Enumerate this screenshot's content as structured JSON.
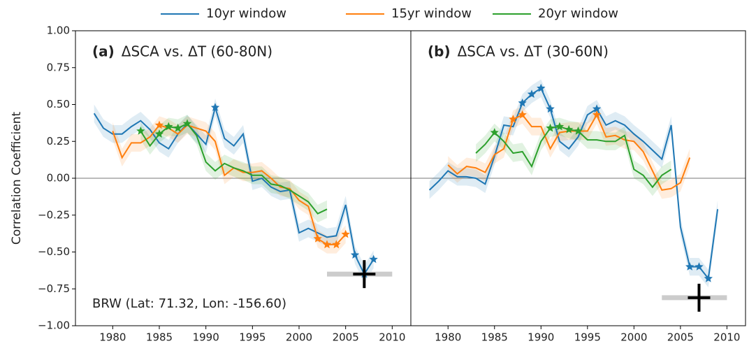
{
  "chart_data": [
    {
      "type": "line",
      "panel_label": "(a)",
      "title": "ΔSCA vs. ΔT (60-80N)",
      "ylabel": "Correlation Coefficient",
      "annotation": "BRW (Lat: 71.32, Lon: -156.60)",
      "xlim": [
        1976,
        2012
      ],
      "xticks": [
        1980,
        1985,
        1990,
        1995,
        2000,
        2005,
        2010
      ],
      "ylim": [
        -1,
        1
      ],
      "yticks": [
        {
          "value": -1,
          "label": "−1.00"
        },
        {
          "value": -0.75,
          "label": "−0.75"
        },
        {
          "value": -0.5,
          "label": "−0.50"
        },
        {
          "value": -0.25,
          "label": "−0.25"
        },
        {
          "value": 0,
          "label": "0.00"
        },
        {
          "value": 0.25,
          "label": "0.25"
        },
        {
          "value": 0.5,
          "label": "0.50"
        },
        {
          "value": 0.75,
          "label": "0.75"
        },
        {
          "value": 1,
          "label": "1.00"
        }
      ],
      "hline": 0,
      "band": 0.06,
      "observed": {
        "x": 2007,
        "y": -0.65,
        "range": [
          2003,
          2010
        ]
      },
      "series": [
        {
          "name": "10yr window",
          "color": "#1f77b4",
          "x": [
            1978,
            1979,
            1980,
            1981,
            1982,
            1983,
            1984,
            1985,
            1986,
            1987,
            1988,
            1989,
            1990,
            1991,
            1992,
            1993,
            1994,
            1995,
            1996,
            1997,
            1998,
            1999,
            2000,
            2001,
            2002,
            2003,
            2004,
            2005,
            2006,
            2007,
            2008
          ],
          "values": [
            0.44,
            0.34,
            0.3,
            0.3,
            0.35,
            0.39,
            0.33,
            0.24,
            0.2,
            0.3,
            0.37,
            0.3,
            0.23,
            0.48,
            0.27,
            0.22,
            0.3,
            -0.02,
            0.0,
            -0.06,
            -0.09,
            -0.08,
            -0.37,
            -0.34,
            -0.37,
            -0.4,
            -0.39,
            -0.18,
            -0.52,
            -0.65,
            -0.55
          ],
          "stars": [
            1991,
            2006,
            2007,
            2008
          ]
        },
        {
          "name": "15yr window",
          "color": "#ff7f0e",
          "x": [
            1980,
            1981,
            1982,
            1983,
            1984,
            1985,
            1986,
            1987,
            1988,
            1989,
            1990,
            1991,
            1992,
            1993,
            1994,
            1995,
            1996,
            1997,
            1998,
            1999,
            2000,
            2001,
            2002,
            2003,
            2004,
            2005
          ],
          "values": [
            0.32,
            0.14,
            0.24,
            0.24,
            0.28,
            0.36,
            0.34,
            0.3,
            0.36,
            0.34,
            0.32,
            0.25,
            0.02,
            0.07,
            0.04,
            0.04,
            0.05,
            0.0,
            -0.06,
            -0.07,
            -0.15,
            -0.19,
            -0.41,
            -0.45,
            -0.45,
            -0.38
          ],
          "stars": [
            1985,
            2002,
            2003,
            2004,
            2005
          ]
        },
        {
          "name": "20yr window",
          "color": "#2ca02c",
          "x": [
            1983,
            1984,
            1985,
            1986,
            1987,
            1988,
            1989,
            1990,
            1991,
            1992,
            1993,
            1994,
            1995,
            1996,
            1997,
            1998,
            1999,
            2000,
            2001,
            2002,
            2003
          ],
          "values": [
            0.32,
            0.22,
            0.3,
            0.35,
            0.34,
            0.37,
            0.29,
            0.11,
            0.05,
            0.1,
            0.07,
            0.05,
            0.02,
            0.02,
            -0.04,
            -0.05,
            -0.08,
            -0.12,
            -0.16,
            -0.24,
            -0.21
          ],
          "stars": [
            1983,
            1985,
            1986,
            1987,
            1988
          ]
        }
      ]
    },
    {
      "type": "line",
      "panel_label": "(b)",
      "title": "ΔSCA vs. ΔT (30-60N)",
      "xlim": [
        1976,
        2012
      ],
      "xticks": [
        1980,
        1985,
        1990,
        1995,
        2000,
        2005,
        2010
      ],
      "ylim": [
        -1,
        1
      ],
      "hline": 0,
      "band": 0.06,
      "observed": {
        "x": 2007,
        "y": -0.81,
        "range": [
          2003,
          2010
        ]
      },
      "series": [
        {
          "name": "10yr window",
          "color": "#1f77b4",
          "x": [
            1978,
            1979,
            1980,
            1981,
            1982,
            1983,
            1984,
            1985,
            1986,
            1987,
            1988,
            1989,
            1990,
            1991,
            1992,
            1993,
            1994,
            1995,
            1996,
            1997,
            1998,
            1999,
            2000,
            2001,
            2002,
            2003,
            2004,
            2005,
            2006,
            2007,
            2008,
            2009
          ],
          "values": [
            -0.08,
            -0.02,
            0.05,
            0.01,
            0.01,
            0.0,
            -0.04,
            0.15,
            0.36,
            0.35,
            0.51,
            0.57,
            0.61,
            0.47,
            0.25,
            0.2,
            0.28,
            0.43,
            0.47,
            0.36,
            0.39,
            0.36,
            0.3,
            0.25,
            0.19,
            0.13,
            0.36,
            -0.33,
            -0.6,
            -0.6,
            -0.68,
            -0.21
          ],
          "stars": [
            1988,
            1989,
            1990,
            1991,
            1996,
            2006,
            2007,
            2008
          ]
        },
        {
          "name": "15yr window",
          "color": "#ff7f0e",
          "x": [
            1980,
            1981,
            1982,
            1983,
            1984,
            1985,
            1986,
            1987,
            1988,
            1989,
            1990,
            1991,
            1992,
            1993,
            1994,
            1995,
            1996,
            1997,
            1998,
            1999,
            2000,
            2001,
            2002,
            2003,
            2004,
            2005,
            2006
          ],
          "values": [
            0.09,
            0.03,
            0.08,
            0.07,
            0.04,
            0.16,
            0.2,
            0.4,
            0.43,
            0.35,
            0.35,
            0.2,
            0.31,
            0.32,
            0.32,
            0.32,
            0.43,
            0.28,
            0.29,
            0.26,
            0.25,
            0.18,
            0.05,
            -0.08,
            -0.07,
            -0.03,
            0.14
          ],
          "stars": [
            1987,
            1988,
            1996
          ]
        },
        {
          "name": "20yr window",
          "color": "#2ca02c",
          "x": [
            1983,
            1984,
            1985,
            1986,
            1987,
            1988,
            1989,
            1990,
            1991,
            1992,
            1993,
            1994,
            1995,
            1996,
            1997,
            1998,
            1999,
            2000,
            2001,
            2002,
            2003,
            2004
          ],
          "values": [
            0.17,
            0.23,
            0.31,
            0.25,
            0.17,
            0.18,
            0.08,
            0.25,
            0.34,
            0.35,
            0.33,
            0.32,
            0.26,
            0.26,
            0.25,
            0.25,
            0.29,
            0.06,
            0.02,
            -0.06,
            0.02,
            0.06
          ],
          "stars": [
            1985,
            1991,
            1992,
            1993,
            1994
          ]
        }
      ]
    }
  ]
}
